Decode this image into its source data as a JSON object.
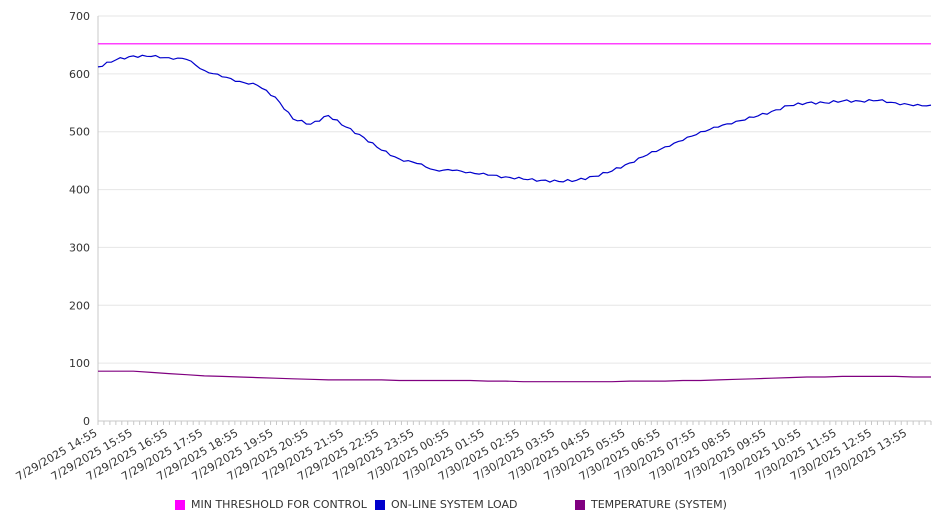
{
  "chart_data": {
    "type": "line",
    "title": "",
    "xlabel": "",
    "ylabel": "",
    "ylim": [
      0,
      700
    ],
    "y_ticks": [
      0,
      100,
      200,
      300,
      400,
      500,
      600,
      700
    ],
    "grid": "horizontal",
    "legend_position": "bottom",
    "x_tick_labels": [
      "7/29/2025 14:55",
      "7/29/2025 15:55",
      "7/29/2025 16:55",
      "7/29/2025 17:55",
      "7/29/2025 18:55",
      "7/29/2025 19:55",
      "7/29/2025 20:55",
      "7/29/2025 21:55",
      "7/29/2025 22:55",
      "7/29/2025 23:55",
      "7/30/2025 00:55",
      "7/30/2025 01:55",
      "7/30/2025 02:55",
      "7/30/2025 03:55",
      "7/30/2025 04:55",
      "7/30/2025 05:55",
      "7/30/2025 06:55",
      "7/30/2025 07:55",
      "7/30/2025 08:55",
      "7/30/2025 09:55",
      "7/30/2025 10:55",
      "7/30/2025 11:55",
      "7/30/2025 12:55",
      "7/30/2025 13:55"
    ],
    "x": [
      "14:55",
      "15:25",
      "15:55",
      "16:25",
      "16:55",
      "17:25",
      "17:55",
      "18:25",
      "18:55",
      "19:25",
      "19:55",
      "20:25",
      "20:55",
      "21:25",
      "21:55",
      "22:25",
      "22:55",
      "23:25",
      "23:55",
      "00:25",
      "00:55",
      "01:25",
      "01:55",
      "02:25",
      "02:55",
      "03:25",
      "03:55",
      "04:25",
      "04:55",
      "05:25",
      "05:55",
      "06:25",
      "06:55",
      "07:25",
      "07:55",
      "08:25",
      "08:55",
      "09:25",
      "09:55",
      "10:25",
      "10:55",
      "11:25",
      "11:55",
      "12:25",
      "12:55",
      "13:25",
      "13:55",
      "14:25"
    ],
    "series": [
      {
        "name": "MIN THRESHOLD FOR CONTROL",
        "color": "#ff00ff",
        "values": [
          652,
          652,
          652,
          652,
          652,
          652,
          652,
          652,
          652,
          652,
          652,
          652,
          652,
          652,
          652,
          652,
          652,
          652,
          652,
          652,
          652,
          652,
          652,
          652,
          652,
          652,
          652,
          652,
          652,
          652,
          652,
          652,
          652,
          652,
          652,
          652,
          652,
          652,
          652,
          652,
          652,
          652,
          652,
          652,
          652,
          652,
          652,
          652
        ]
      },
      {
        "name": "ON-LINE SYSTEM LOAD",
        "color": "#0000cc",
        "values": [
          612,
          624,
          631,
          630,
          628,
          625,
          606,
          595,
          587,
          580,
          560,
          522,
          513,
          528,
          508,
          490,
          468,
          453,
          445,
          434,
          433,
          430,
          425,
          422,
          418,
          416,
          414,
          416,
          423,
          432,
          446,
          460,
          474,
          485,
          500,
          508,
          518,
          525,
          535,
          545,
          550,
          550,
          553,
          553,
          554,
          550,
          545,
          546
        ]
      },
      {
        "name": "TEMPERATURE (SYSTEM)",
        "color": "#800080",
        "values": [
          86,
          86,
          86,
          84,
          82,
          80,
          78,
          77,
          76,
          75,
          74,
          73,
          72,
          71,
          71,
          71,
          71,
          70,
          70,
          70,
          70,
          70,
          69,
          69,
          68,
          68,
          68,
          68,
          68,
          68,
          69,
          69,
          69,
          70,
          70,
          71,
          72,
          73,
          74,
          75,
          76,
          76,
          77,
          77,
          77,
          77,
          76,
          76
        ]
      }
    ]
  }
}
